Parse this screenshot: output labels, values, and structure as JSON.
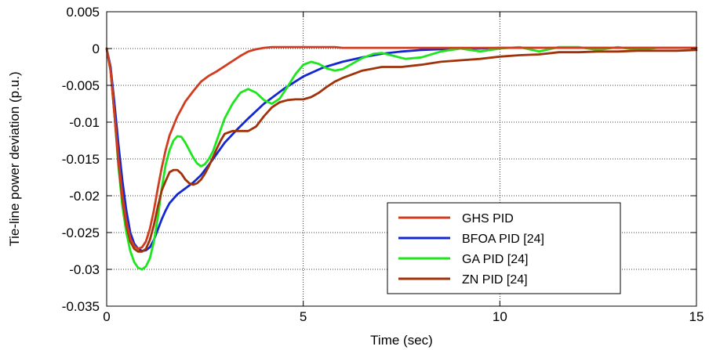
{
  "chart_data": {
    "type": "line",
    "title": "",
    "xlabel": "Time (sec)",
    "ylabel": "Tie-line power deviation (p.u.)",
    "xlim": [
      0,
      15
    ],
    "ylim": [
      -0.035,
      0.005
    ],
    "xticks": [
      0,
      5,
      10,
      15
    ],
    "yticks": [
      0.005,
      0,
      -0.005,
      -0.01,
      -0.015,
      -0.02,
      -0.025,
      -0.03,
      -0.035
    ],
    "xtick_labels": [
      "0",
      "5",
      "10",
      "15"
    ],
    "ytick_labels": [
      "0.005",
      "0",
      "-0.005",
      "-0.01",
      "-0.015",
      "-0.02",
      "-0.025",
      "-0.03",
      "-0.035"
    ],
    "grid": true,
    "legend_position": "bottom-right",
    "series": [
      {
        "name": "GHS PID",
        "color": "#d23c1e",
        "x": [
          0,
          0.1,
          0.2,
          0.3,
          0.4,
          0.5,
          0.6,
          0.7,
          0.8,
          0.9,
          1.0,
          1.1,
          1.2,
          1.3,
          1.4,
          1.5,
          1.6,
          1.7,
          1.8,
          1.9,
          2.0,
          2.2,
          2.4,
          2.6,
          2.8,
          3.0,
          3.2,
          3.4,
          3.6,
          3.8,
          4.0,
          4.2,
          4.6,
          5.0,
          5.5,
          5.8,
          6.0,
          6.5,
          7,
          8,
          9,
          10,
          11,
          12,
          13,
          14,
          15
        ],
        "y": [
          0,
          -0.003,
          -0.009,
          -0.015,
          -0.02,
          -0.0235,
          -0.0258,
          -0.0268,
          -0.0272,
          -0.027,
          -0.0262,
          -0.0245,
          -0.022,
          -0.019,
          -0.0162,
          -0.0138,
          -0.0118,
          -0.0105,
          -0.0092,
          -0.0082,
          -0.0072,
          -0.0058,
          -0.0045,
          -0.0037,
          -0.0031,
          -0.0024,
          -0.0017,
          -0.001,
          -0.0004,
          -0.0001,
          0.0001,
          0.0002,
          0.0002,
          0.0002,
          0.0002,
          0.0002,
          0.0001,
          0.0001,
          0.0001,
          0.0001,
          0.0001,
          0.0001,
          0.0001,
          0.0001,
          0.0001,
          0.0001,
          0.0001
        ]
      },
      {
        "name": "BFOA PID [24]",
        "color": "#1428d2",
        "x": [
          0,
          0.1,
          0.2,
          0.3,
          0.4,
          0.5,
          0.6,
          0.7,
          0.8,
          0.9,
          1.0,
          1.1,
          1.2,
          1.3,
          1.4,
          1.5,
          1.6,
          1.8,
          2.0,
          2.2,
          2.4,
          2.6,
          2.8,
          3.0,
          3.3,
          3.6,
          4.0,
          4.5,
          5.0,
          5.5,
          6.0,
          6.5,
          7.0,
          7.5,
          8.0,
          8.5,
          9.0,
          9.5,
          10.0,
          11,
          12,
          13,
          14,
          15
        ],
        "y": [
          0,
          -0.0025,
          -0.0075,
          -0.013,
          -0.018,
          -0.022,
          -0.025,
          -0.0265,
          -0.0272,
          -0.0275,
          -0.0274,
          -0.027,
          -0.026,
          -0.0246,
          -0.0232,
          -0.022,
          -0.021,
          -0.0198,
          -0.019,
          -0.0182,
          -0.0172,
          -0.0158,
          -0.0143,
          -0.0128,
          -0.0111,
          -0.0095,
          -0.0075,
          -0.0055,
          -0.0038,
          -0.0026,
          -0.0018,
          -0.0012,
          -0.0007,
          -0.0004,
          -0.0002,
          -0.0001,
          0,
          0,
          0.0001,
          0.0001,
          0.0001,
          0.0001,
          0.0001,
          0.0001
        ]
      },
      {
        "name": "GA PID [24]",
        "color": "#1ee61e",
        "x": [
          0,
          0.1,
          0.2,
          0.3,
          0.4,
          0.5,
          0.6,
          0.7,
          0.8,
          0.9,
          1.0,
          1.1,
          1.2,
          1.3,
          1.4,
          1.5,
          1.6,
          1.7,
          1.8,
          1.9,
          2.0,
          2.1,
          2.2,
          2.3,
          2.4,
          2.5,
          2.6,
          2.7,
          2.8,
          2.9,
          3.0,
          3.2,
          3.4,
          3.6,
          3.8,
          4.0,
          4.2,
          4.4,
          4.6,
          4.8,
          5.0,
          5.2,
          5.4,
          5.6,
          5.8,
          6.0,
          6.2,
          6.5,
          6.8,
          7.0,
          7.3,
          7.6,
          8.0,
          8.5,
          9.0,
          9.5,
          10.0,
          10.5,
          11.0,
          11.5,
          12.0,
          12.5,
          13.0,
          13.5,
          14.0,
          14.5,
          15.0
        ],
        "y": [
          0,
          -0.003,
          -0.009,
          -0.016,
          -0.0215,
          -0.025,
          -0.0275,
          -0.029,
          -0.0298,
          -0.03,
          -0.0296,
          -0.0285,
          -0.0262,
          -0.023,
          -0.019,
          -0.0158,
          -0.0138,
          -0.0125,
          -0.0119,
          -0.012,
          -0.0128,
          -0.0138,
          -0.0148,
          -0.0156,
          -0.016,
          -0.0157,
          -0.015,
          -0.014,
          -0.0125,
          -0.011,
          -0.0095,
          -0.0075,
          -0.006,
          -0.0055,
          -0.006,
          -0.007,
          -0.0075,
          -0.0068,
          -0.0052,
          -0.0035,
          -0.0022,
          -0.0018,
          -0.0021,
          -0.0027,
          -0.003,
          -0.0028,
          -0.0022,
          -0.0013,
          -0.0007,
          -0.0006,
          -0.001,
          -0.0014,
          -0.0012,
          -0.0004,
          0,
          -0.0004,
          0,
          0.0002,
          -0.0004,
          0.0002,
          0.0002,
          -0.0002,
          0.0002,
          -0.0002,
          0.0001,
          0.0001,
          0.0001
        ]
      },
      {
        "name": "ZN PID [24]",
        "color": "#a0320a",
        "x": [
          0,
          0.1,
          0.2,
          0.3,
          0.4,
          0.5,
          0.6,
          0.7,
          0.8,
          0.9,
          1.0,
          1.1,
          1.2,
          1.3,
          1.4,
          1.5,
          1.6,
          1.7,
          1.8,
          1.9,
          2.0,
          2.1,
          2.2,
          2.3,
          2.4,
          2.5,
          2.6,
          2.7,
          2.8,
          2.9,
          3.0,
          3.2,
          3.4,
          3.6,
          3.8,
          4.0,
          4.2,
          4.4,
          4.6,
          4.8,
          5.0,
          5.2,
          5.4,
          5.6,
          5.8,
          6.0,
          6.5,
          7.0,
          7.3,
          7.5,
          8.0,
          8.5,
          9.0,
          9.5,
          10.0,
          10.5,
          11.0,
          11.5,
          12.0,
          12.5,
          13.0,
          13.5,
          14.0,
          14.5,
          15.0
        ],
        "y": [
          0,
          -0.003,
          -0.009,
          -0.0155,
          -0.0205,
          -0.024,
          -0.0262,
          -0.0272,
          -0.0276,
          -0.0276,
          -0.0272,
          -0.026,
          -0.024,
          -0.0215,
          -0.0193,
          -0.018,
          -0.0168,
          -0.0165,
          -0.0165,
          -0.017,
          -0.0178,
          -0.0183,
          -0.0185,
          -0.0183,
          -0.0178,
          -0.017,
          -0.016,
          -0.0148,
          -0.0136,
          -0.0125,
          -0.0116,
          -0.0112,
          -0.0112,
          -0.0112,
          -0.0106,
          -0.0092,
          -0.008,
          -0.0073,
          -0.007,
          -0.0069,
          -0.0069,
          -0.0066,
          -0.006,
          -0.0052,
          -0.0045,
          -0.004,
          -0.003,
          -0.0025,
          -0.0025,
          -0.0025,
          -0.0022,
          -0.0018,
          -0.0016,
          -0.0014,
          -0.0011,
          -0.0009,
          -0.0008,
          -0.0005,
          -0.0005,
          -0.0004,
          -0.0004,
          -0.0003,
          -0.0003,
          -0.0003,
          -0.0002
        ]
      }
    ]
  }
}
